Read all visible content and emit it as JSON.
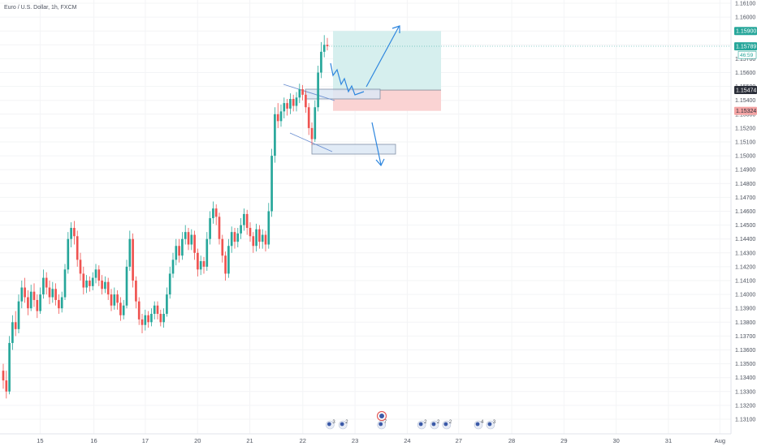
{
  "title": "Euro / U.S. Dollar, 1h, FXCM",
  "colors": {
    "up": "#26a69a",
    "down": "#ef5350",
    "profit_zone": "#d6efee",
    "loss_zone": "#fad3d3",
    "zone_box": "#dce8f5",
    "zone_border": "#5b7fb5",
    "arrow": "#2e86de",
    "last_price_badge": "#26a69a",
    "entry_badge": "#2a2e39",
    "target_badge": "#26a69a",
    "stop_badge": "#f4a4a4"
  },
  "badges": {
    "target": "1.15900",
    "last_price": "1.15789",
    "countdown": "46:59",
    "entry": "1.15474",
    "stop": "1.15324"
  },
  "chart_data": {
    "type": "candlestick",
    "symbol": "Euro / U.S. Dollar",
    "interval": "1h",
    "source": "FXCM",
    "y_axis": {
      "min": 1.131,
      "max": 1.161,
      "ticks": [
        "1.16100",
        "1.16000",
        "1.15900",
        "1.15800",
        "1.15700",
        "1.15600",
        "1.15500",
        "1.15400",
        "1.15300",
        "1.15200",
        "1.15100",
        "1.15000",
        "1.14900",
        "1.14800",
        "1.14700",
        "1.14600",
        "1.14500",
        "1.14400",
        "1.14300",
        "1.14200",
        "1.14100",
        "1.14000",
        "1.13900",
        "1.13800",
        "1.13700",
        "1.13600",
        "1.13500",
        "1.13400",
        "1.13300",
        "1.13200",
        "1.13100"
      ]
    },
    "x_axis": {
      "ticks": [
        {
          "label": "15",
          "pos": 0.053
        },
        {
          "label": "16",
          "pos": 0.124
        },
        {
          "label": "17",
          "pos": 0.192
        },
        {
          "label": "20",
          "pos": 0.261
        },
        {
          "label": "21",
          "pos": 0.33
        },
        {
          "label": "22",
          "pos": 0.4
        },
        {
          "label": "23",
          "pos": 0.469
        },
        {
          "label": "24",
          "pos": 0.538
        },
        {
          "label": "27",
          "pos": 0.606
        },
        {
          "label": "28",
          "pos": 0.676
        },
        {
          "label": "29",
          "pos": 0.745
        },
        {
          "label": "30",
          "pos": 0.814
        },
        {
          "label": "31",
          "pos": 0.883
        },
        {
          "label": "Aug",
          "pos": 0.951
        }
      ]
    },
    "candles": [
      [
        1.1345,
        1.1338,
        1.135,
        1.1332
      ],
      [
        1.1338,
        1.133,
        1.1345,
        1.1325
      ],
      [
        1.133,
        1.1365,
        1.137,
        1.1328
      ],
      [
        1.1365,
        1.138,
        1.1385,
        1.136
      ],
      [
        1.138,
        1.1375,
        1.1388,
        1.137
      ],
      [
        1.1375,
        1.1395,
        1.14,
        1.1372
      ],
      [
        1.1395,
        1.1405,
        1.141,
        1.139
      ],
      [
        1.1405,
        1.1398,
        1.1412,
        1.1394
      ],
      [
        1.1398,
        1.139,
        1.1403,
        1.1385
      ],
      [
        1.139,
        1.1402,
        1.1407,
        1.1388
      ],
      [
        1.1402,
        1.1396,
        1.1408,
        1.1391
      ],
      [
        1.1396,
        1.1388,
        1.14,
        1.1383
      ],
      [
        1.1388,
        1.14,
        1.1405,
        1.1386
      ],
      [
        1.14,
        1.1412,
        1.1418,
        1.1397
      ],
      [
        1.1412,
        1.1405,
        1.1416,
        1.14
      ],
      [
        1.1405,
        1.1398,
        1.141,
        1.1393
      ],
      [
        1.1398,
        1.1404,
        1.1409,
        1.1394
      ],
      [
        1.1404,
        1.1396,
        1.1408,
        1.1392
      ],
      [
        1.1396,
        1.139,
        1.14,
        1.1386
      ],
      [
        1.139,
        1.1398,
        1.1402,
        1.1387
      ],
      [
        1.1398,
        1.1418,
        1.1422,
        1.1396
      ],
      [
        1.1418,
        1.144,
        1.1445,
        1.1415
      ],
      [
        1.144,
        1.1448,
        1.1452,
        1.1434
      ],
      [
        1.1448,
        1.1442,
        1.1453,
        1.1436
      ],
      [
        1.1442,
        1.1425,
        1.1446,
        1.142
      ],
      [
        1.1425,
        1.1415,
        1.143,
        1.141
      ],
      [
        1.1415,
        1.1405,
        1.142,
        1.14
      ],
      [
        1.1405,
        1.141,
        1.1414,
        1.1401
      ],
      [
        1.141,
        1.1406,
        1.1413,
        1.1402
      ],
      [
        1.1406,
        1.1412,
        1.1416,
        1.1403
      ],
      [
        1.1412,
        1.1418,
        1.1422,
        1.1408
      ],
      [
        1.1418,
        1.141,
        1.1421,
        1.1406
      ],
      [
        1.141,
        1.1404,
        1.1414,
        1.14
      ],
      [
        1.1404,
        1.1409,
        1.1413,
        1.1401
      ],
      [
        1.1409,
        1.14,
        1.1412,
        1.1396
      ],
      [
        1.14,
        1.1392,
        1.1404,
        1.1388
      ],
      [
        1.1392,
        1.14,
        1.1405,
        1.1389
      ],
      [
        1.14,
        1.1394,
        1.1403,
        1.1389
      ],
      [
        1.1394,
        1.1385,
        1.1398,
        1.1381
      ],
      [
        1.1385,
        1.1392,
        1.1396,
        1.1382
      ],
      [
        1.1392,
        1.142,
        1.1425,
        1.139
      ],
      [
        1.142,
        1.144,
        1.1446,
        1.1417
      ],
      [
        1.144,
        1.141,
        1.1444,
        1.1405
      ],
      [
        1.141,
        1.1395,
        1.1413,
        1.139
      ],
      [
        1.1395,
        1.1382,
        1.1398,
        1.1378
      ],
      [
        1.1382,
        1.1378,
        1.1386,
        1.1372
      ],
      [
        1.1378,
        1.1385,
        1.1389,
        1.1374
      ],
      [
        1.1385,
        1.138,
        1.1388,
        1.1376
      ],
      [
        1.138,
        1.1386,
        1.139,
        1.1377
      ],
      [
        1.1386,
        1.1392,
        1.1395,
        1.1382
      ],
      [
        1.1392,
        1.1386,
        1.1395,
        1.1382
      ],
      [
        1.1386,
        1.138,
        1.1389,
        1.1377
      ],
      [
        1.138,
        1.1386,
        1.139,
        1.1376
      ],
      [
        1.1386,
        1.14,
        1.1405,
        1.1384
      ],
      [
        1.14,
        1.1415,
        1.142,
        1.1397
      ],
      [
        1.1415,
        1.1425,
        1.143,
        1.1412
      ],
      [
        1.1425,
        1.1435,
        1.144,
        1.1421
      ],
      [
        1.1435,
        1.1428,
        1.144,
        1.1423
      ],
      [
        1.1428,
        1.144,
        1.1445,
        1.1425
      ],
      [
        1.144,
        1.1445,
        1.145,
        1.1436
      ],
      [
        1.1445,
        1.1436,
        1.1448,
        1.1432
      ],
      [
        1.1436,
        1.1443,
        1.1447,
        1.1432
      ],
      [
        1.1443,
        1.143,
        1.1446,
        1.1425
      ],
      [
        1.143,
        1.1418,
        1.1433,
        1.1413
      ],
      [
        1.1418,
        1.1424,
        1.1428,
        1.1414
      ],
      [
        1.1424,
        1.142,
        1.1427,
        1.1415
      ],
      [
        1.142,
        1.144,
        1.1445,
        1.1417
      ],
      [
        1.144,
        1.1455,
        1.146,
        1.1436
      ],
      [
        1.1455,
        1.1462,
        1.1467,
        1.1451
      ],
      [
        1.1462,
        1.1456,
        1.1465,
        1.145
      ],
      [
        1.1456,
        1.144,
        1.1459,
        1.1436
      ],
      [
        1.144,
        1.1428,
        1.1443,
        1.1423
      ],
      [
        1.1428,
        1.1415,
        1.1431,
        1.141
      ],
      [
        1.1415,
        1.1435,
        1.144,
        1.1412
      ],
      [
        1.1435,
        1.1445,
        1.1449,
        1.143
      ],
      [
        1.1445,
        1.1438,
        1.1448,
        1.1433
      ],
      [
        1.1438,
        1.1444,
        1.1448,
        1.1434
      ],
      [
        1.1444,
        1.145,
        1.1455,
        1.144
      ],
      [
        1.145,
        1.1458,
        1.1462,
        1.1446
      ],
      [
        1.1458,
        1.1448,
        1.1461,
        1.1443
      ],
      [
        1.1448,
        1.1442,
        1.1452,
        1.1438
      ],
      [
        1.1442,
        1.1435,
        1.1445,
        1.143
      ],
      [
        1.1435,
        1.1447,
        1.1451,
        1.1431
      ],
      [
        1.1447,
        1.1438,
        1.145,
        1.1433
      ],
      [
        1.1438,
        1.1443,
        1.1447,
        1.1433
      ],
      [
        1.1443,
        1.1436,
        1.1446,
        1.1431
      ],
      [
        1.1436,
        1.146,
        1.1466,
        1.1433
      ],
      [
        1.146,
        1.15,
        1.1505,
        1.1456
      ],
      [
        1.15,
        1.153,
        1.1535,
        1.1495
      ],
      [
        1.153,
        1.1525,
        1.1538,
        1.152
      ],
      [
        1.1525,
        1.1532,
        1.1537,
        1.1521
      ],
      [
        1.1532,
        1.1538,
        1.1542,
        1.1527
      ],
      [
        1.1538,
        1.1534,
        1.1541,
        1.1529
      ],
      [
        1.1534,
        1.1541,
        1.1545,
        1.153
      ],
      [
        1.1541,
        1.1536,
        1.1544,
        1.1532
      ],
      [
        1.1536,
        1.1542,
        1.1546,
        1.1532
      ],
      [
        1.1542,
        1.1548,
        1.1552,
        1.1538
      ],
      [
        1.1548,
        1.1544,
        1.1551,
        1.154
      ],
      [
        1.1544,
        1.1535,
        1.1547,
        1.1531
      ],
      [
        1.1535,
        1.152,
        1.1538,
        1.1515
      ],
      [
        1.152,
        1.1512,
        1.1524,
        1.1508
      ],
      [
        1.1512,
        1.1535,
        1.154,
        1.151
      ],
      [
        1.1535,
        1.156,
        1.1565,
        1.1532
      ],
      [
        1.156,
        1.1575,
        1.1582,
        1.1556
      ],
      [
        1.1575,
        1.158,
        1.1587,
        1.1571
      ],
      [
        1.158,
        1.1579,
        1.1585,
        1.1576
      ]
    ]
  },
  "annotations": {
    "long_position": {
      "entry": 1.15474,
      "target": 1.159,
      "stop": 1.15324
    }
  },
  "events": [
    {
      "label": "3",
      "x_pos": 0.436
    },
    {
      "label": "2",
      "x_pos": 0.453
    },
    {
      "label": "7",
      "x_pos": 0.504
    },
    {
      "label": "2",
      "x_pos": 0.557
    },
    {
      "label": "2",
      "x_pos": 0.574
    },
    {
      "label": "2",
      "x_pos": 0.59
    },
    {
      "label": "4",
      "x_pos": 0.632
    },
    {
      "label": "3",
      "x_pos": 0.648
    }
  ]
}
